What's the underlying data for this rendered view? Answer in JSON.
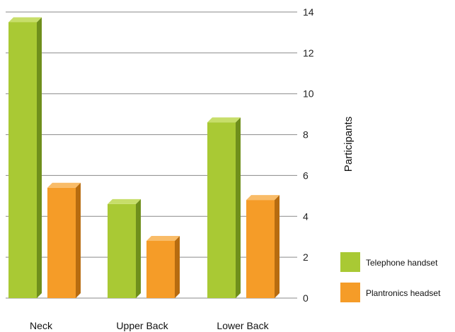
{
  "chart_data": {
    "type": "bar",
    "categories": [
      "Neck",
      "Upper Back",
      "Lower Back"
    ],
    "series": [
      {
        "name": "Telephone handset",
        "values": [
          13.5,
          4.6,
          8.6
        ]
      },
      {
        "name": "Plantronics headset",
        "values": [
          5.4,
          2.8,
          4.8
        ]
      }
    ],
    "colors": {
      "Telephone handset": {
        "front": "#a9c934",
        "side": "#6f8f1c",
        "top": "#c7de6a"
      },
      "Plantronics headset": {
        "front": "#f59c28",
        "side": "#b76c10",
        "top": "#f9bc68"
      }
    },
    "xlabel": "",
    "ylabel": "Participants",
    "ylim": [
      0,
      14
    ],
    "yticks": [
      0,
      2,
      4,
      6,
      8,
      10,
      12,
      14
    ],
    "ytick_labels": [
      "0",
      "2",
      "4",
      "6",
      "8",
      "10",
      "12",
      "14"
    ],
    "grid": true,
    "y_axis_position": "right",
    "legend_position": "right-bottom"
  }
}
